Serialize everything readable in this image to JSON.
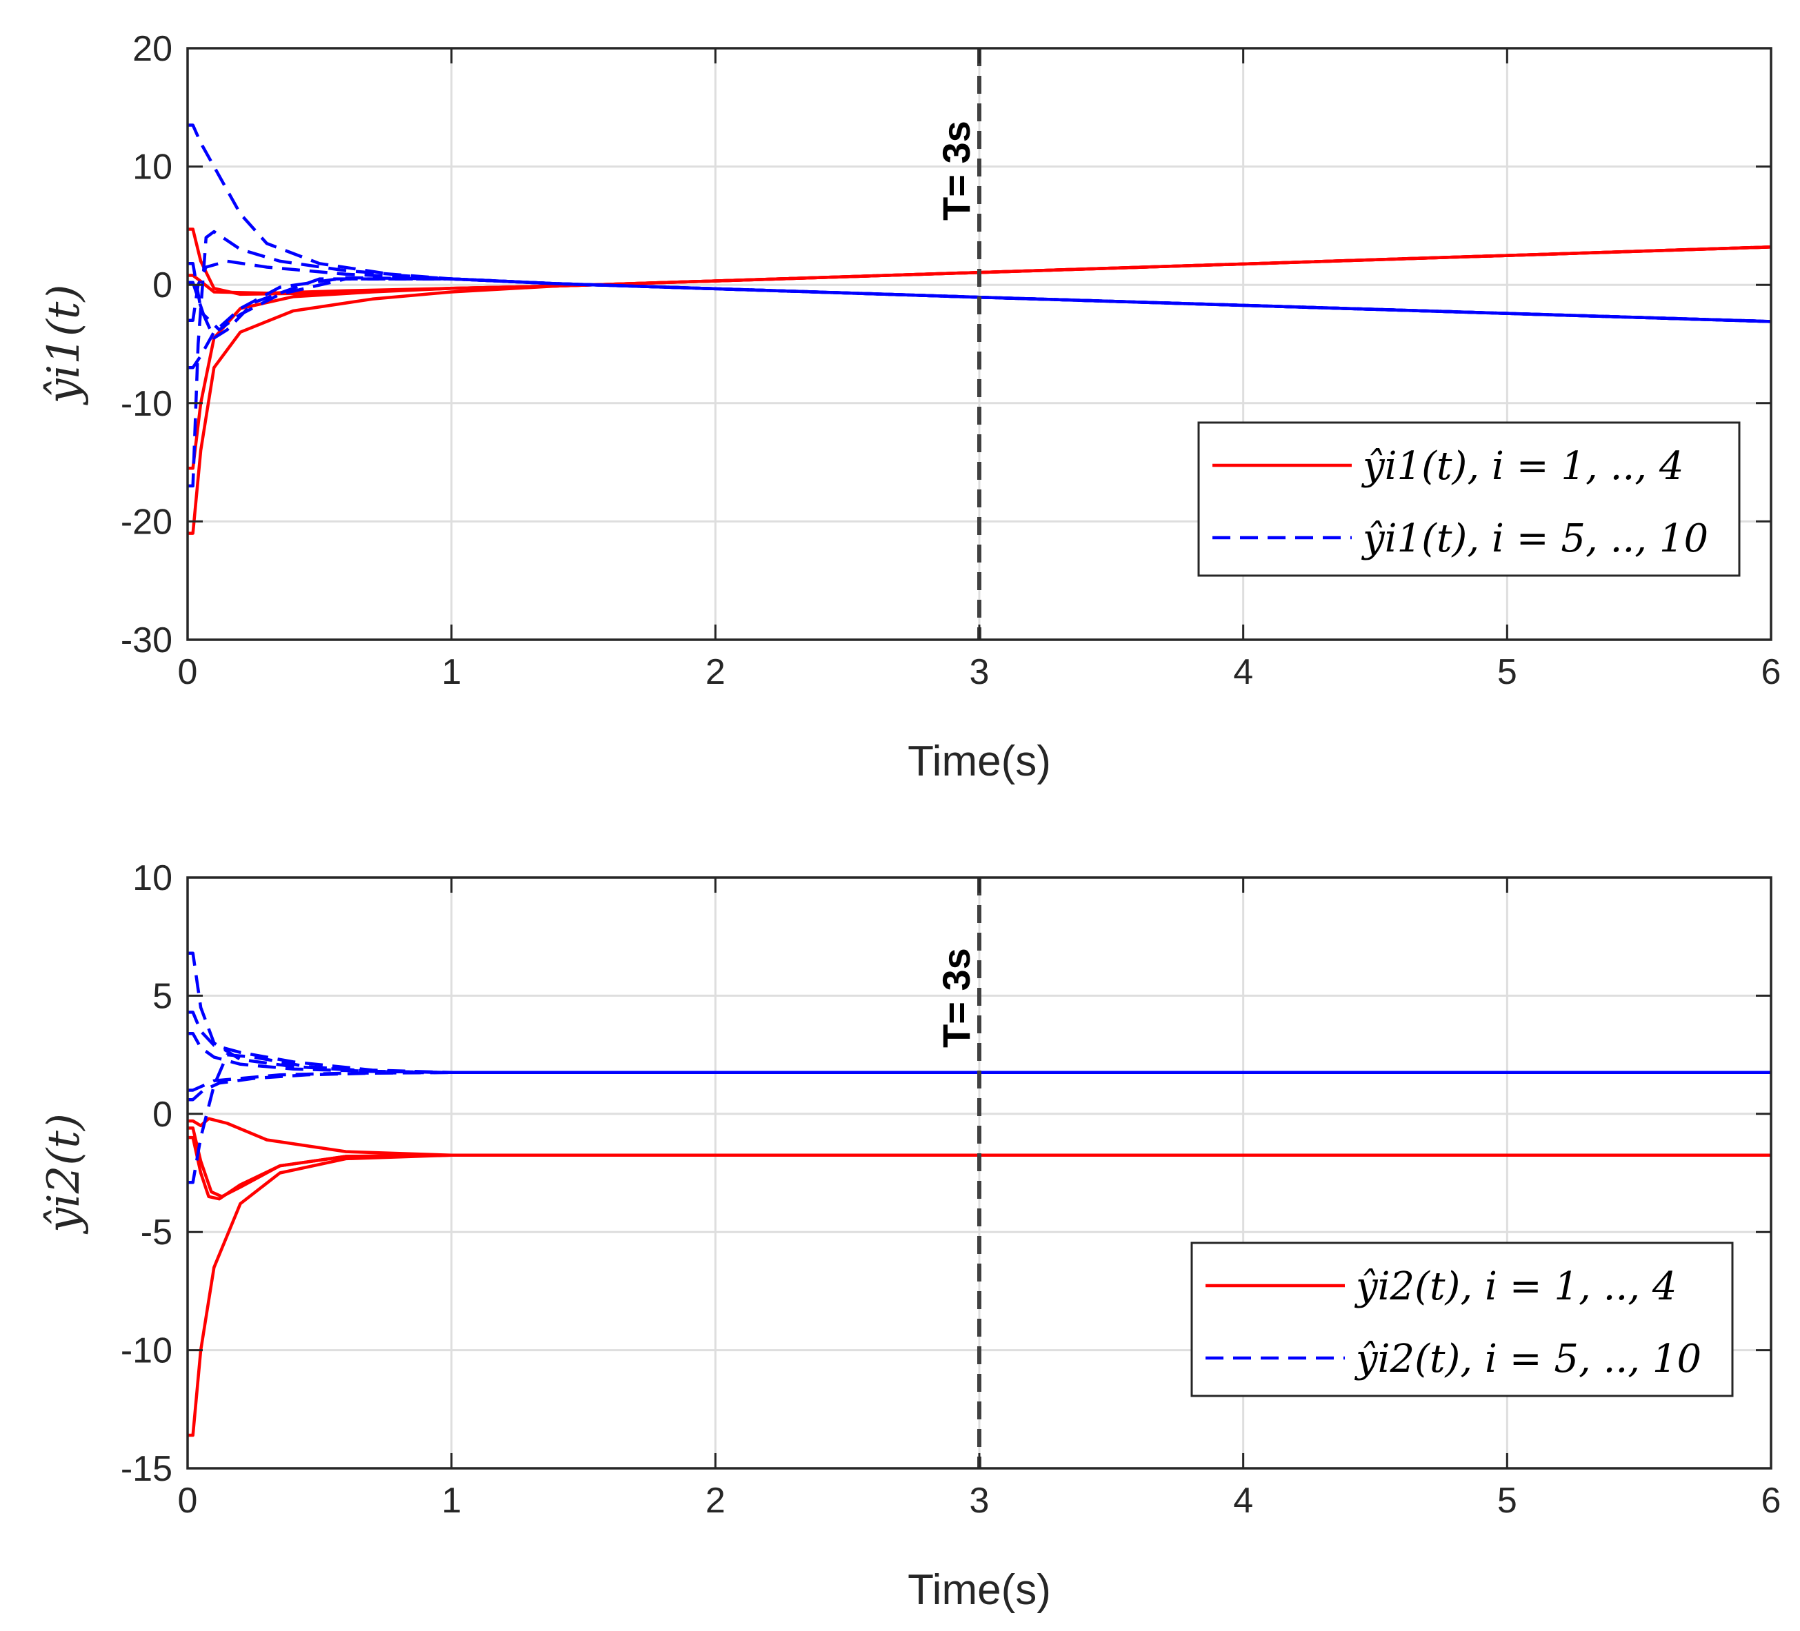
{
  "chart_data": [
    {
      "type": "line",
      "xlabel": "Time(s)",
      "ylabel": "ŷi1(t)",
      "xlim": [
        0,
        6
      ],
      "ylim": [
        -30,
        20
      ],
      "xticks": [
        0,
        1,
        2,
        3,
        4,
        5,
        6
      ],
      "yticks": [
        -30,
        -20,
        -10,
        0,
        10,
        20
      ],
      "grid": true,
      "legend_position": "right",
      "annotation": {
        "label": "T= 3s",
        "x": 3
      },
      "legend": [
        {
          "label": "ŷi1(t), i = 1, .., 4",
          "color": "#ff0000",
          "style": "solid"
        },
        {
          "label": "ŷi1(t), i = 5, .., 10",
          "color": "#0000ff",
          "style": "dashed"
        }
      ],
      "series": [
        {
          "group": 0,
          "color": "#ff0000",
          "style": "solid",
          "points": [
            [
              0,
              -21
            ],
            [
              0.02,
              -21
            ],
            [
              0.05,
              -14
            ],
            [
              0.1,
              -7
            ],
            [
              0.2,
              -4
            ],
            [
              0.4,
              -2.2
            ],
            [
              0.7,
              -1.2
            ],
            [
              1.0,
              -0.6
            ],
            [
              1.4,
              -0.1
            ],
            [
              3,
              1.05
            ],
            [
              6,
              3.2
            ]
          ]
        },
        {
          "group": 0,
          "color": "#ff0000",
          "style": "solid",
          "points": [
            [
              0,
              -15.5
            ],
            [
              0.02,
              -15.5
            ],
            [
              0.05,
              -10
            ],
            [
              0.1,
              -4.5
            ],
            [
              0.2,
              -2
            ],
            [
              0.4,
              -1
            ],
            [
              0.7,
              -0.6
            ],
            [
              1.0,
              -0.3
            ],
            [
              1.4,
              -0.1
            ],
            [
              3,
              1.05
            ],
            [
              6,
              3.2
            ]
          ]
        },
        {
          "group": 0,
          "color": "#ff0000",
          "style": "solid",
          "points": [
            [
              0,
              4.7
            ],
            [
              0.02,
              4.7
            ],
            [
              0.05,
              2
            ],
            [
              0.1,
              -0.3
            ],
            [
              0.2,
              -0.8
            ],
            [
              0.5,
              -0.7
            ],
            [
              1.0,
              -0.3
            ],
            [
              1.4,
              -0.1
            ],
            [
              3,
              1.05
            ],
            [
              6,
              3.2
            ]
          ]
        },
        {
          "group": 0,
          "color": "#ff0000",
          "style": "solid",
          "points": [
            [
              0,
              0.8
            ],
            [
              0.02,
              0.8
            ],
            [
              0.05,
              0.3
            ],
            [
              0.1,
              -0.6
            ],
            [
              0.3,
              -0.7
            ],
            [
              0.6,
              -0.5
            ],
            [
              1.0,
              -0.3
            ],
            [
              1.4,
              -0.1
            ],
            [
              3,
              1.05
            ],
            [
              6,
              3.2
            ]
          ]
        },
        {
          "group": 1,
          "color": "#0000ff",
          "style": "dashed",
          "points": [
            [
              0,
              13.5
            ],
            [
              0.02,
              13.5
            ],
            [
              0.05,
              12
            ],
            [
              0.1,
              10
            ],
            [
              0.2,
              6
            ],
            [
              0.3,
              3.5
            ],
            [
              0.5,
              1.8
            ],
            [
              0.8,
              0.8
            ],
            [
              1.0,
              0.5
            ],
            [
              1.4,
              0.1
            ],
            [
              3,
              -1.05
            ],
            [
              6,
              -3.1
            ]
          ]
        },
        {
          "group": 1,
          "color": "#0000ff",
          "style": "dashed",
          "points": [
            [
              0,
              -17
            ],
            [
              0.02,
              -17
            ],
            [
              0.04,
              -5
            ],
            [
              0.07,
              4
            ],
            [
              0.1,
              4.5
            ],
            [
              0.2,
              3
            ],
            [
              0.35,
              2
            ],
            [
              0.6,
              1.2
            ],
            [
              1.0,
              0.5
            ],
            [
              1.4,
              0.1
            ],
            [
              3,
              -1.05
            ],
            [
              6,
              -3.1
            ]
          ]
        },
        {
          "group": 1,
          "color": "#0000ff",
          "style": "dashed",
          "points": [
            [
              0,
              -7
            ],
            [
              0.02,
              -7
            ],
            [
              0.05,
              -6
            ],
            [
              0.1,
              -4
            ],
            [
              0.2,
              -2
            ],
            [
              0.35,
              -0.2
            ],
            [
              0.6,
              0.6
            ],
            [
              1.0,
              0.5
            ],
            [
              1.4,
              0.1
            ],
            [
              3,
              -1.05
            ],
            [
              6,
              -3.1
            ]
          ]
        },
        {
          "group": 1,
          "color": "#0000ff",
          "style": "dashed",
          "points": [
            [
              0,
              -3
            ],
            [
              0.02,
              -3
            ],
            [
              0.04,
              0
            ],
            [
              0.07,
              1.5
            ],
            [
              0.15,
              2
            ],
            [
              0.3,
              1.5
            ],
            [
              0.6,
              0.9
            ],
            [
              1.0,
              0.5
            ],
            [
              1.4,
              0.1
            ],
            [
              3,
              -1.05
            ],
            [
              6,
              -3.1
            ]
          ]
        },
        {
          "group": 1,
          "color": "#0000ff",
          "style": "dashed",
          "points": [
            [
              0,
              1.8
            ],
            [
              0.02,
              1.8
            ],
            [
              0.05,
              -2
            ],
            [
              0.1,
              -4.5
            ],
            [
              0.15,
              -3.8
            ],
            [
              0.25,
              -1.5
            ],
            [
              0.5,
              0.5
            ],
            [
              1.0,
              0.5
            ],
            [
              1.4,
              0.1
            ],
            [
              3,
              -1.05
            ],
            [
              6,
              -3.1
            ]
          ]
        },
        {
          "group": 1,
          "color": "#0000ff",
          "style": "dashed",
          "points": [
            [
              0,
              0.2
            ],
            [
              0.02,
              0.2
            ],
            [
              0.06,
              -2.5
            ],
            [
              0.12,
              -3.8
            ],
            [
              0.2,
              -2.5
            ],
            [
              0.35,
              -0.8
            ],
            [
              0.6,
              0.5
            ],
            [
              1.0,
              0.5
            ],
            [
              1.4,
              0.1
            ],
            [
              3,
              -1.05
            ],
            [
              6,
              -3.1
            ]
          ]
        }
      ]
    },
    {
      "type": "line",
      "xlabel": "Time(s)",
      "ylabel": "ŷi2(t)",
      "xlim": [
        0,
        6
      ],
      "ylim": [
        -15,
        10
      ],
      "xticks": [
        0,
        1,
        2,
        3,
        4,
        5,
        6
      ],
      "yticks": [
        -15,
        -10,
        -5,
        0,
        5,
        10
      ],
      "grid": true,
      "legend_position": "right",
      "annotation": {
        "label": "T= 3s",
        "x": 3
      },
      "legend": [
        {
          "label": "ŷi2(t), i = 1, .., 4",
          "color": "#ff0000",
          "style": "solid"
        },
        {
          "label": "ŷi2(t), i = 5, .., 10",
          "color": "#0000ff",
          "style": "dashed"
        }
      ],
      "series": [
        {
          "group": 0,
          "color": "#ff0000",
          "style": "solid",
          "points": [
            [
              0,
              -13.6
            ],
            [
              0.02,
              -13.6
            ],
            [
              0.05,
              -10
            ],
            [
              0.1,
              -6.5
            ],
            [
              0.2,
              -3.8
            ],
            [
              0.35,
              -2.5
            ],
            [
              0.6,
              -1.9
            ],
            [
              1.0,
              -1.75
            ],
            [
              6,
              -1.75
            ]
          ]
        },
        {
          "group": 0,
          "color": "#ff0000",
          "style": "solid",
          "points": [
            [
              0,
              -1
            ],
            [
              0.02,
              -1
            ],
            [
              0.05,
              -2.5
            ],
            [
              0.08,
              -3.5
            ],
            [
              0.12,
              -3.6
            ],
            [
              0.2,
              -3
            ],
            [
              0.35,
              -2.2
            ],
            [
              0.6,
              -1.8
            ],
            [
              1.0,
              -1.75
            ],
            [
              6,
              -1.75
            ]
          ]
        },
        {
          "group": 0,
          "color": "#ff0000",
          "style": "solid",
          "points": [
            [
              0,
              -0.6
            ],
            [
              0.02,
              -0.6
            ],
            [
              0.05,
              -2
            ],
            [
              0.09,
              -3.3
            ],
            [
              0.13,
              -3.5
            ],
            [
              0.2,
              -3.1
            ],
            [
              0.35,
              -2.2
            ],
            [
              0.6,
              -1.8
            ],
            [
              1.0,
              -1.75
            ],
            [
              6,
              -1.75
            ]
          ]
        },
        {
          "group": 0,
          "color": "#ff0000",
          "style": "solid",
          "points": [
            [
              0,
              -0.3
            ],
            [
              0.02,
              -0.3
            ],
            [
              0.05,
              -0.5
            ],
            [
              0.08,
              -0.2
            ],
            [
              0.15,
              -0.4
            ],
            [
              0.3,
              -1.1
            ],
            [
              0.6,
              -1.6
            ],
            [
              1.0,
              -1.75
            ],
            [
              6,
              -1.75
            ]
          ]
        },
        {
          "group": 1,
          "color": "#0000ff",
          "style": "dashed",
          "points": [
            [
              0,
              6.8
            ],
            [
              0.02,
              6.8
            ],
            [
              0.05,
              4.5
            ],
            [
              0.1,
              3
            ],
            [
              0.2,
              2.3
            ],
            [
              0.4,
              2
            ],
            [
              0.7,
              1.8
            ],
            [
              1.0,
              1.75
            ],
            [
              6,
              1.75
            ]
          ]
        },
        {
          "group": 1,
          "color": "#0000ff",
          "style": "dashed",
          "points": [
            [
              0,
              4.3
            ],
            [
              0.02,
              4.3
            ],
            [
              0.05,
              3.5
            ],
            [
              0.1,
              2.9
            ],
            [
              0.2,
              2.6
            ],
            [
              0.4,
              2.2
            ],
            [
              0.7,
              1.85
            ],
            [
              1.0,
              1.75
            ],
            [
              6,
              1.75
            ]
          ]
        },
        {
          "group": 1,
          "color": "#0000ff",
          "style": "dashed",
          "points": [
            [
              0,
              3.4
            ],
            [
              0.02,
              3.4
            ],
            [
              0.05,
              2.8
            ],
            [
              0.1,
              2.4
            ],
            [
              0.2,
              2.1
            ],
            [
              0.4,
              1.9
            ],
            [
              0.7,
              1.8
            ],
            [
              1.0,
              1.75
            ],
            [
              6,
              1.75
            ]
          ]
        },
        {
          "group": 1,
          "color": "#0000ff",
          "style": "dashed",
          "points": [
            [
              0,
              -2.9
            ],
            [
              0.02,
              -2.9
            ],
            [
              0.05,
              -1
            ],
            [
              0.1,
              1.2
            ],
            [
              0.15,
              2.5
            ],
            [
              0.25,
              2.4
            ],
            [
              0.45,
              2
            ],
            [
              0.7,
              1.8
            ],
            [
              1.0,
              1.75
            ],
            [
              6,
              1.75
            ]
          ]
        },
        {
          "group": 1,
          "color": "#0000ff",
          "style": "dashed",
          "points": [
            [
              0,
              1
            ],
            [
              0.02,
              1
            ],
            [
              0.06,
              1.2
            ],
            [
              0.1,
              1.4
            ],
            [
              0.2,
              1.5
            ],
            [
              0.35,
              1.65
            ],
            [
              0.6,
              1.72
            ],
            [
              1.0,
              1.75
            ],
            [
              6,
              1.75
            ]
          ]
        },
        {
          "group": 1,
          "color": "#0000ff",
          "style": "dashed",
          "points": [
            [
              0,
              0.6
            ],
            [
              0.02,
              0.6
            ],
            [
              0.06,
              1
            ],
            [
              0.12,
              1.3
            ],
            [
              0.25,
              1.5
            ],
            [
              0.45,
              1.65
            ],
            [
              0.7,
              1.72
            ],
            [
              1.0,
              1.75
            ],
            [
              6,
              1.75
            ]
          ]
        }
      ]
    }
  ]
}
